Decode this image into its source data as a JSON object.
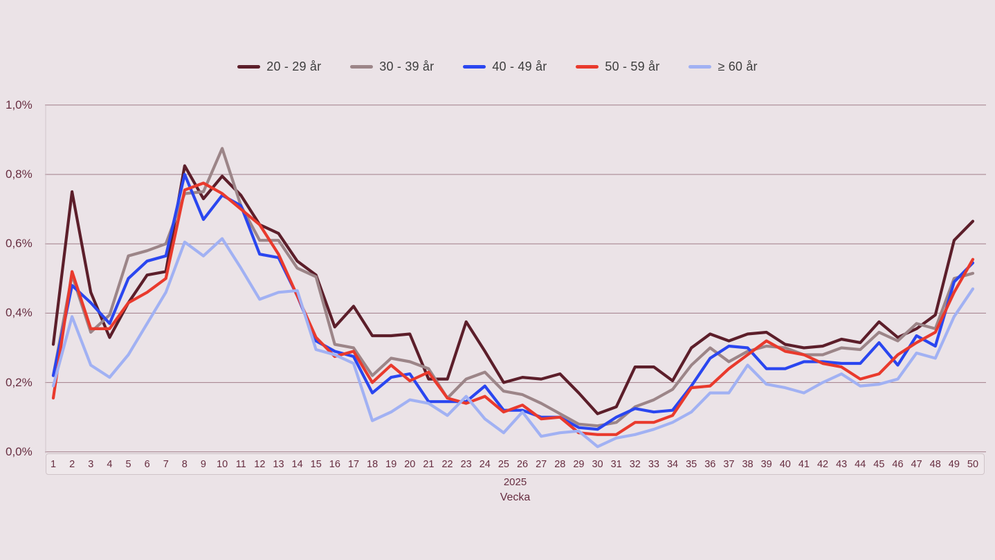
{
  "page": {
    "background": "#ebe3e7",
    "text_color": "#672d40"
  },
  "chart_data": {
    "type": "line",
    "title": "",
    "xlabel": "Vecka",
    "x_axis_group_label": "2025",
    "ylabel": "",
    "unit": "percent",
    "ylim": [
      0,
      1.0
    ],
    "grid": true,
    "legend_position": "top",
    "y_ticks": [
      "0,0%",
      "0,2%",
      "0,4%",
      "0,6%",
      "0,8%",
      "1,0%"
    ],
    "y_tick_values": [
      0,
      0.2,
      0.4,
      0.6,
      0.8,
      1.0
    ],
    "categories": [
      "1",
      "2",
      "3",
      "4",
      "5",
      "6",
      "7",
      "8",
      "9",
      "10",
      "11",
      "12",
      "13",
      "14",
      "15",
      "16",
      "17",
      "18",
      "19",
      "20",
      "21",
      "22",
      "23",
      "24",
      "25",
      "26",
      "27",
      "28",
      "29",
      "30",
      "31",
      "32",
      "33",
      "34",
      "35",
      "36",
      "37",
      "38",
      "39",
      "40",
      "41",
      "42",
      "43",
      "44",
      "45",
      "46",
      "47",
      "48",
      "49",
      "50"
    ],
    "series": [
      {
        "name": "20 - 29 år",
        "color": "#5c1e2a",
        "values": [
          0.31,
          0.75,
          0.46,
          0.33,
          0.43,
          0.51,
          0.52,
          0.825,
          0.73,
          0.795,
          0.74,
          0.655,
          0.63,
          0.55,
          0.51,
          0.36,
          0.42,
          0.335,
          0.335,
          0.34,
          0.21,
          0.21,
          0.375,
          0.29,
          0.2,
          0.215,
          0.21,
          0.225,
          0.17,
          0.11,
          0.13,
          0.245,
          0.245,
          0.205,
          0.3,
          0.34,
          0.32,
          0.34,
          0.345,
          0.31,
          0.3,
          0.305,
          0.325,
          0.315,
          0.375,
          0.33,
          0.355,
          0.395,
          0.61,
          0.665
        ]
      },
      {
        "name": "30 - 39 år",
        "color": "#9c8588",
        "values": [
          0.22,
          0.51,
          0.345,
          0.395,
          0.565,
          0.58,
          0.6,
          0.745,
          0.75,
          0.875,
          0.71,
          0.61,
          0.61,
          0.53,
          0.505,
          0.31,
          0.3,
          0.22,
          0.27,
          0.26,
          0.24,
          0.155,
          0.21,
          0.23,
          0.175,
          0.165,
          0.14,
          0.11,
          0.08,
          0.075,
          0.085,
          0.13,
          0.15,
          0.18,
          0.25,
          0.3,
          0.26,
          0.29,
          0.305,
          0.3,
          0.28,
          0.28,
          0.3,
          0.295,
          0.345,
          0.32,
          0.37,
          0.355,
          0.5,
          0.515
        ]
      },
      {
        "name": "40 - 49 år",
        "color": "#2a46f0",
        "values": [
          0.22,
          0.48,
          0.43,
          0.37,
          0.5,
          0.55,
          0.565,
          0.8,
          0.67,
          0.74,
          0.71,
          0.57,
          0.56,
          0.45,
          0.32,
          0.29,
          0.275,
          0.17,
          0.215,
          0.225,
          0.145,
          0.145,
          0.145,
          0.19,
          0.12,
          0.12,
          0.1,
          0.1,
          0.07,
          0.065,
          0.1,
          0.125,
          0.115,
          0.12,
          0.19,
          0.27,
          0.305,
          0.3,
          0.24,
          0.24,
          0.26,
          0.26,
          0.255,
          0.255,
          0.315,
          0.25,
          0.335,
          0.305,
          0.49,
          0.545
        ]
      },
      {
        "name": "50 - 59 år",
        "color": "#e93a2d",
        "values": [
          0.155,
          0.52,
          0.355,
          0.355,
          0.43,
          0.46,
          0.5,
          0.755,
          0.775,
          0.745,
          0.7,
          0.655,
          0.57,
          0.45,
          0.33,
          0.275,
          0.29,
          0.2,
          0.25,
          0.205,
          0.23,
          0.155,
          0.14,
          0.16,
          0.115,
          0.135,
          0.095,
          0.1,
          0.055,
          0.05,
          0.05,
          0.085,
          0.085,
          0.105,
          0.185,
          0.19,
          0.24,
          0.28,
          0.32,
          0.29,
          0.28,
          0.255,
          0.245,
          0.21,
          0.225,
          0.28,
          0.315,
          0.345,
          0.46,
          0.555
        ]
      },
      {
        "name": "≥ 60 år",
        "color": "#a1b1f3",
        "values": [
          0.19,
          0.39,
          0.25,
          0.215,
          0.28,
          0.37,
          0.46,
          0.605,
          0.565,
          0.615,
          0.53,
          0.44,
          0.46,
          0.465,
          0.295,
          0.28,
          0.255,
          0.09,
          0.115,
          0.15,
          0.14,
          0.105,
          0.16,
          0.095,
          0.055,
          0.115,
          0.045,
          0.055,
          0.06,
          0.015,
          0.04,
          0.05,
          0.065,
          0.085,
          0.115,
          0.17,
          0.17,
          0.25,
          0.195,
          0.185,
          0.17,
          0.2,
          0.225,
          0.19,
          0.195,
          0.21,
          0.285,
          0.27,
          0.39,
          0.47
        ]
      }
    ],
    "style": {
      "gridline_color": "#8a5c6a",
      "axis_line_color": "#cfc3c8",
      "line_width": 4.2
    }
  }
}
